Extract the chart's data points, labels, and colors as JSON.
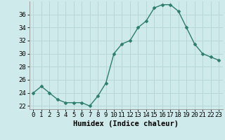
{
  "x": [
    0,
    1,
    2,
    3,
    4,
    5,
    6,
    7,
    8,
    9,
    10,
    11,
    12,
    13,
    14,
    15,
    16,
    17,
    18,
    19,
    20,
    21,
    22,
    23
  ],
  "y": [
    24,
    25,
    24,
    23,
    22.5,
    22.5,
    22.5,
    22,
    23.5,
    25.5,
    30,
    31.5,
    32,
    34,
    35,
    37,
    37.5,
    37.5,
    36.5,
    34,
    31.5,
    30,
    29.5,
    29
  ],
  "line_color": "#2d7d6e",
  "marker_color": "#2d7d6e",
  "bg_color": "#ceeaea",
  "grid_color": "#b8d8d8",
  "xlabel": "Humidex (Indice chaleur)",
  "ylim": [
    21.5,
    38.0
  ],
  "xlim": [
    -0.5,
    23.5
  ],
  "yticks": [
    22,
    24,
    26,
    28,
    30,
    32,
    34,
    36
  ],
  "xticks": [
    0,
    1,
    2,
    3,
    4,
    5,
    6,
    7,
    8,
    9,
    10,
    11,
    12,
    13,
    14,
    15,
    16,
    17,
    18,
    19,
    20,
    21,
    22,
    23
  ],
  "xlabel_fontsize": 7.5,
  "tick_fontsize": 6.5,
  "line_width": 1.0,
  "marker_size": 2.5
}
